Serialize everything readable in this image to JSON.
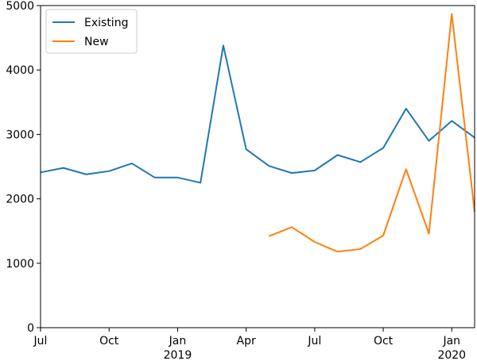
{
  "chart_data": {
    "type": "line",
    "x": [
      "2018-07",
      "2018-08",
      "2018-09",
      "2018-10",
      "2018-11",
      "2018-12",
      "2019-01",
      "2019-02",
      "2019-03",
      "2019-04",
      "2019-05",
      "2019-06",
      "2019-07",
      "2019-08",
      "2019-09",
      "2019-10",
      "2019-11",
      "2019-12",
      "2020-01",
      "2020-02"
    ],
    "series": [
      {
        "name": "Existing",
        "color": "#1f77b4",
        "values": [
          2410,
          2480,
          2380,
          2430,
          2550,
          2330,
          2330,
          2250,
          4380,
          2770,
          2510,
          2400,
          2440,
          2680,
          2570,
          2790,
          3400,
          2900,
          3210,
          2950
        ]
      },
      {
        "name": "New",
        "color": "#ff7f0e",
        "values": [
          null,
          null,
          null,
          null,
          null,
          null,
          null,
          null,
          null,
          null,
          1420,
          1560,
          1330,
          1180,
          1220,
          1430,
          2460,
          1460,
          4870,
          1800
        ]
      }
    ],
    "ylim": [
      0,
      5000
    ],
    "xlim": [
      "2018-07",
      "2020-02"
    ],
    "yticks": [
      0,
      1000,
      2000,
      3000,
      4000,
      5000
    ],
    "yticklabels": [
      "0",
      "1000",
      "2000",
      "3000",
      "4000",
      "5000"
    ],
    "xticks": [
      {
        "x": "2018-07",
        "label": "Jul",
        "sublabel": ""
      },
      {
        "x": "2018-10",
        "label": "Oct",
        "sublabel": ""
      },
      {
        "x": "2019-01",
        "label": "Jan",
        "sublabel": "2019"
      },
      {
        "x": "2019-04",
        "label": "Apr",
        "sublabel": ""
      },
      {
        "x": "2019-07",
        "label": "Jul",
        "sublabel": ""
      },
      {
        "x": "2019-10",
        "label": "Oct",
        "sublabel": ""
      },
      {
        "x": "2020-01",
        "label": "Jan",
        "sublabel": "2020"
      }
    ],
    "legend": {
      "placement": "upper-left"
    },
    "grid": false,
    "title": "",
    "xlabel": "",
    "ylabel": ""
  }
}
